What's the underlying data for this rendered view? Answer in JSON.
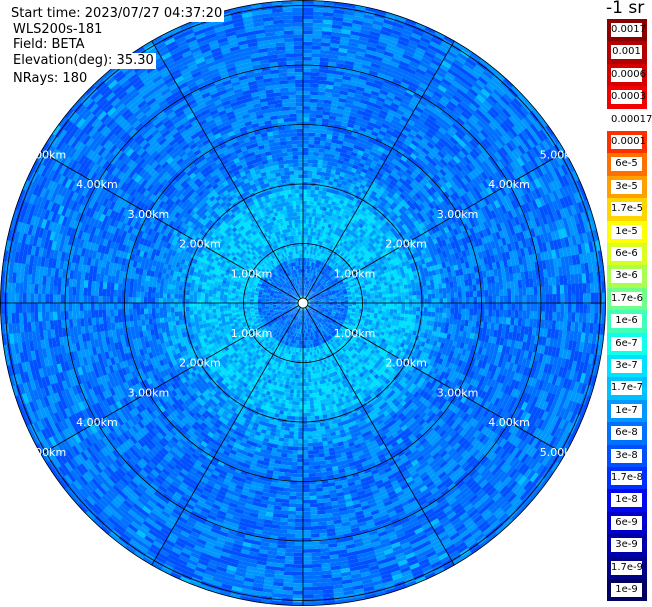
{
  "header": {
    "start_time": "Start time: 2023/07/27 04:37:20",
    "device": "WLS200s-181",
    "field": "Field: BETA",
    "elevation": "Elevation(deg): 35.30",
    "nrays": "NRays: 180"
  },
  "colorbar": {
    "unit": "-1 sr",
    "labels": [
      "0.0017",
      "0.001",
      "0.0006",
      "0.0003",
      "0.00017",
      "0.0001",
      "6e-5",
      "3e-5",
      "1.7e-5",
      "1e-5",
      "6e-6",
      "3e-6",
      "1.7e-6",
      "1e-6",
      "6e-7",
      "3e-7",
      "1.7e-7",
      "1e-7",
      "6e-8",
      "3e-8",
      "1.7e-8",
      "1e-8",
      "6e-9",
      "3e-9",
      "1.7e-9",
      "1e-9"
    ],
    "colors": [
      "#8b0000",
      "#b30000",
      "#d40000",
      "#f00000",
      "#ffffff",
      "#ff3000",
      "#ff7000",
      "#ffa000",
      "#ffd500",
      "#ffff00",
      "#d8ff20",
      "#a8ff50",
      "#70ff88",
      "#40ffb8",
      "#10ffe8",
      "#00e0ff",
      "#00c0ff",
      "#0098ff",
      "#0070ff",
      "#0050ff",
      "#0030ff",
      "#0008f0",
      "#0000c8",
      "#0000a8",
      "#000088",
      "#000060"
    ]
  },
  "chart_data": {
    "type": "heatmap",
    "projection": "polar (PPI)",
    "field": "BETA",
    "range_rings_km": [
      1,
      2,
      3,
      4,
      5
    ],
    "range_labels": [
      "1.00km",
      "2.00km",
      "3.00km",
      "4.00km",
      "5.00km"
    ],
    "max_range_km": 5.75,
    "radial_spokes_deg": [
      0,
      30,
      60,
      90,
      120,
      150,
      180,
      210,
      240,
      270,
      300,
      330
    ],
    "value_regions": [
      {
        "range_km": [
          0.0,
          0.15
        ],
        "beta_sr-1": 1.7e-07
      },
      {
        "range_km": [
          0.15,
          0.75
        ],
        "beta_sr-1": 6e-08
      },
      {
        "range_km": [
          0.75,
          1.9
        ],
        "beta_sr-1": 1.7e-07
      },
      {
        "range_km": [
          1.9,
          2.4
        ],
        "beta_sr-1": 1e-07
      },
      {
        "range_km": [
          2.4,
          5.75
        ],
        "beta_sr-1": 6e-08
      }
    ],
    "colorbar_scale": "log",
    "colorbar_range": [
      1e-09,
      0.0017
    ]
  }
}
